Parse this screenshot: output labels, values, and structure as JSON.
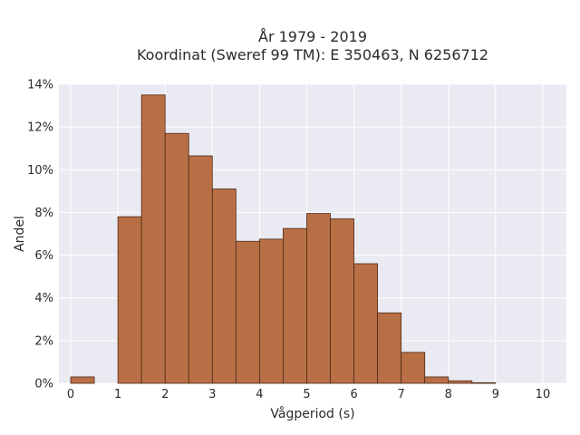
{
  "chart_data": {
    "type": "bar",
    "title": [
      "År 1979 - 2019",
      "Koordinat (Sweref 99 TM): E 350463, N 6256712"
    ],
    "xlabel": "Vågperiod (s)",
    "ylabel": "Andel",
    "xlim": [
      -0.25,
      10.5
    ],
    "ylim": [
      0,
      14
    ],
    "x_ticks": [
      0,
      1,
      2,
      3,
      4,
      5,
      6,
      7,
      8,
      9,
      10
    ],
    "y_ticks": [
      0,
      2,
      4,
      6,
      8,
      10,
      12,
      14
    ],
    "y_tick_labels": [
      "0%",
      "2%",
      "4%",
      "6%",
      "8%",
      "10%",
      "12%",
      "14%"
    ],
    "bin_width": 0.5,
    "bins": [
      {
        "x0": 0.0,
        "value": 0.3
      },
      {
        "x0": 0.5,
        "value": 0.0
      },
      {
        "x0": 1.0,
        "value": 7.8
      },
      {
        "x0": 1.5,
        "value": 13.5
      },
      {
        "x0": 2.0,
        "value": 11.7
      },
      {
        "x0": 2.5,
        "value": 10.65
      },
      {
        "x0": 3.0,
        "value": 9.1
      },
      {
        "x0": 3.5,
        "value": 6.65
      },
      {
        "x0": 4.0,
        "value": 6.75
      },
      {
        "x0": 4.5,
        "value": 7.25
      },
      {
        "x0": 5.0,
        "value": 7.95
      },
      {
        "x0": 5.5,
        "value": 7.7
      },
      {
        "x0": 6.0,
        "value": 5.6
      },
      {
        "x0": 6.5,
        "value": 3.3
      },
      {
        "x0": 7.0,
        "value": 1.45
      },
      {
        "x0": 7.5,
        "value": 0.3
      },
      {
        "x0": 8.0,
        "value": 0.12
      },
      {
        "x0": 8.5,
        "value": 0.03
      }
    ],
    "grid": true,
    "colors": {
      "plot_background": "#eaeaf2",
      "grid": "#ffffff",
      "bar_fill": "#b96f45",
      "bar_edge": "#4a2a18"
    }
  }
}
